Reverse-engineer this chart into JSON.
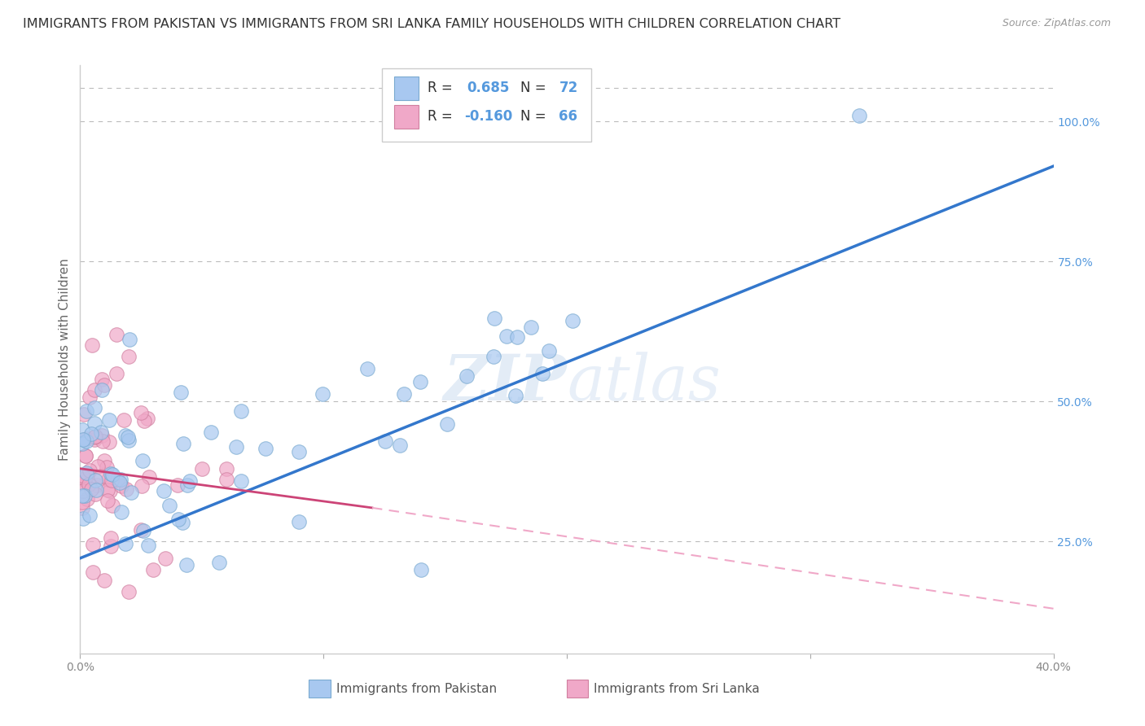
{
  "title": "IMMIGRANTS FROM PAKISTAN VS IMMIGRANTS FROM SRI LANKA FAMILY HOUSEHOLDS WITH CHILDREN CORRELATION CHART",
  "source": "Source: ZipAtlas.com",
  "ylabel": "Family Households with Children",
  "right_yticks": [
    0.25,
    0.5,
    0.75,
    1.0
  ],
  "right_yticklabels": [
    "25.0%",
    "50.0%",
    "75.0%",
    "100.0%"
  ],
  "pakistan_color": "#a8c8f0",
  "pakistan_edge_color": "#7aaad0",
  "srilanka_color": "#f0a8c8",
  "srilanka_edge_color": "#d080a0",
  "pakistan_line_color": "#3377cc",
  "srilanka_line_solid_color": "#cc4477",
  "srilanka_line_dash_color": "#f0a8c8",
  "watermark": "ZIPatlas",
  "pakistan_R": 0.685,
  "pakistan_N": 72,
  "srilanka_R": -0.16,
  "srilanka_N": 66,
  "xlim": [
    0.0,
    0.4
  ],
  "ylim": [
    0.05,
    1.1
  ],
  "grid_color": "#bbbbbb",
  "background_color": "#ffffff",
  "title_fontsize": 11.5,
  "axis_label_fontsize": 11,
  "tick_fontsize": 10,
  "xtick_color": "#888888",
  "right_tick_color": "#5599dd"
}
